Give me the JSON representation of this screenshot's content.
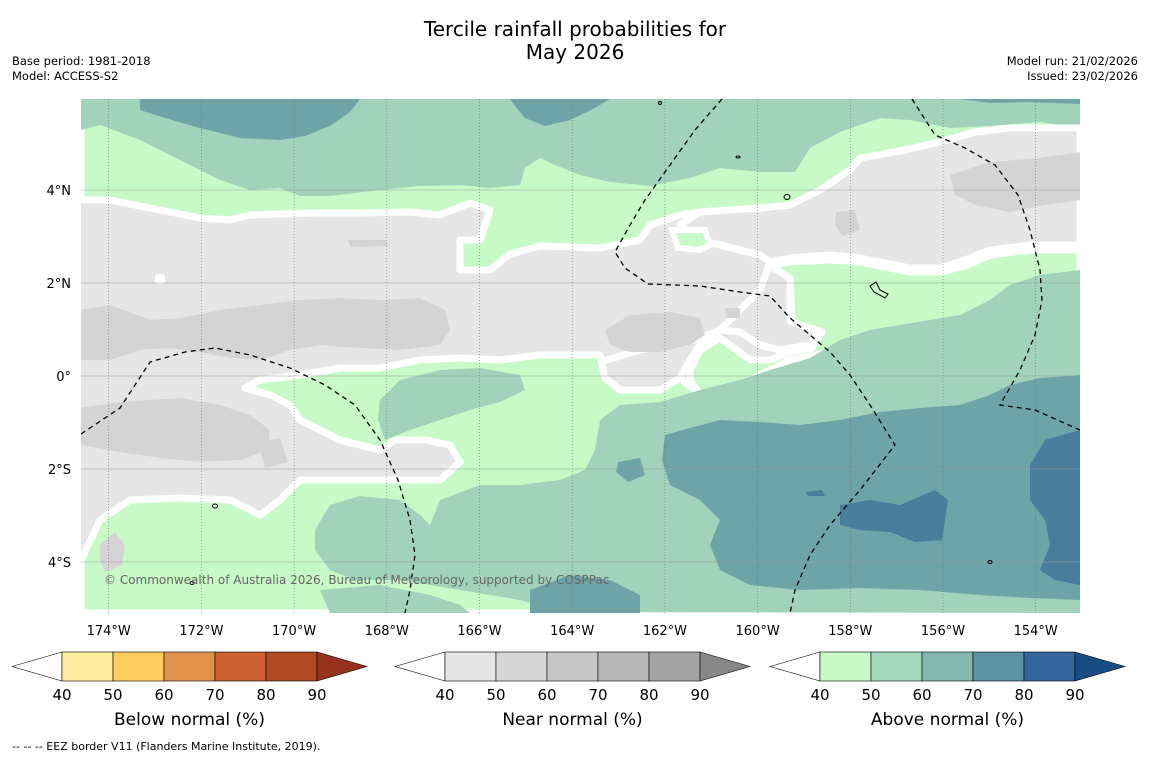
{
  "title": {
    "line1": "Tercile rainfall probabilities for",
    "line2": "May 2026"
  },
  "meta_left": {
    "base_period": "Base period: 1981-2018",
    "model": "Model: ACCESS-S2"
  },
  "meta_right": {
    "model_run": "Model run: 21/02/2026",
    "issued": "Issued: 23/02/2026"
  },
  "map": {
    "lon_labels": [
      "174°W",
      "172°W",
      "170°W",
      "168°W",
      "166°W",
      "164°W",
      "162°W",
      "160°W",
      "158°W",
      "156°W",
      "154°W"
    ],
    "lat_labels": [
      "4°N",
      "2°N",
      "0°",
      "2°S",
      "4°S"
    ],
    "copyright": "© Commonwealth of Australia 2026, Bureau of Meteorology, supported by COSPPac"
  },
  "colorbars": [
    {
      "label": "Below normal (%)",
      "ticks": [
        "40",
        "50",
        "60",
        "70",
        "80",
        "90"
      ],
      "colors": [
        "#ffeda0",
        "#fecc5c",
        "#e0924a",
        "#cd6030",
        "#b04a24",
        "#96321e"
      ]
    },
    {
      "label": "Near normal (%)",
      "ticks": [
        "40",
        "50",
        "60",
        "70",
        "80",
        "90"
      ],
      "colors": [
        "#e6e6e6",
        "#d6d6d6",
        "#c6c6c6",
        "#b6b6b6",
        "#a4a4a4",
        "#888888"
      ]
    },
    {
      "label": "Above normal (%)",
      "ticks": [
        "40",
        "50",
        "60",
        "70",
        "80",
        "90"
      ],
      "colors": [
        "#c8fac8",
        "#a4d8bc",
        "#82b8b0",
        "#5c92a4",
        "#34669c",
        "#184c84"
      ]
    }
  ],
  "footnote": "--  --  -- EEZ border V11 (Flanders Marine Institute, 2019)."
}
